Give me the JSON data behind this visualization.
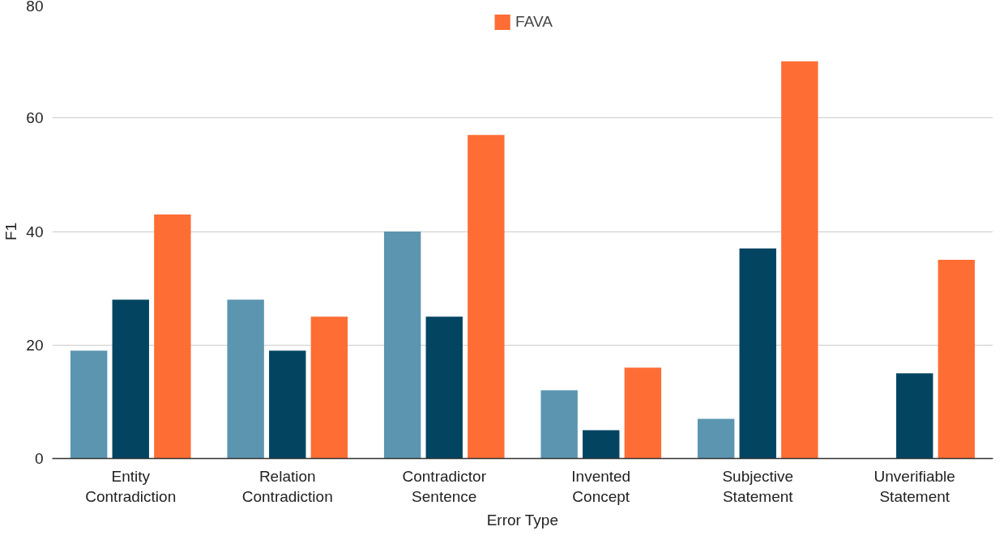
{
  "chart_data": {
    "type": "bar",
    "xlabel": "Error Type",
    "ylabel": "F1",
    "categories": [
      "Entity Contradiction",
      "Relation Contradiction",
      "Contradictor Sentence",
      "Invented Concept",
      "Subjective Statement",
      "Unverifiable Statement"
    ],
    "series": [
      {
        "color": "#5b95b0",
        "values": [
          19,
          28,
          40,
          12,
          7,
          null
        ]
      },
      {
        "color": "#034561",
        "values": [
          28,
          19,
          25,
          5,
          37,
          15
        ]
      },
      {
        "name": "FAVA",
        "color": "#fe6d34",
        "values": [
          43,
          25,
          57,
          16,
          70,
          35
        ]
      }
    ],
    "ylim": [
      0,
      80
    ],
    "yticks": [
      0,
      20,
      40,
      60,
      80
    ],
    "grid": "y",
    "legend": "top"
  }
}
